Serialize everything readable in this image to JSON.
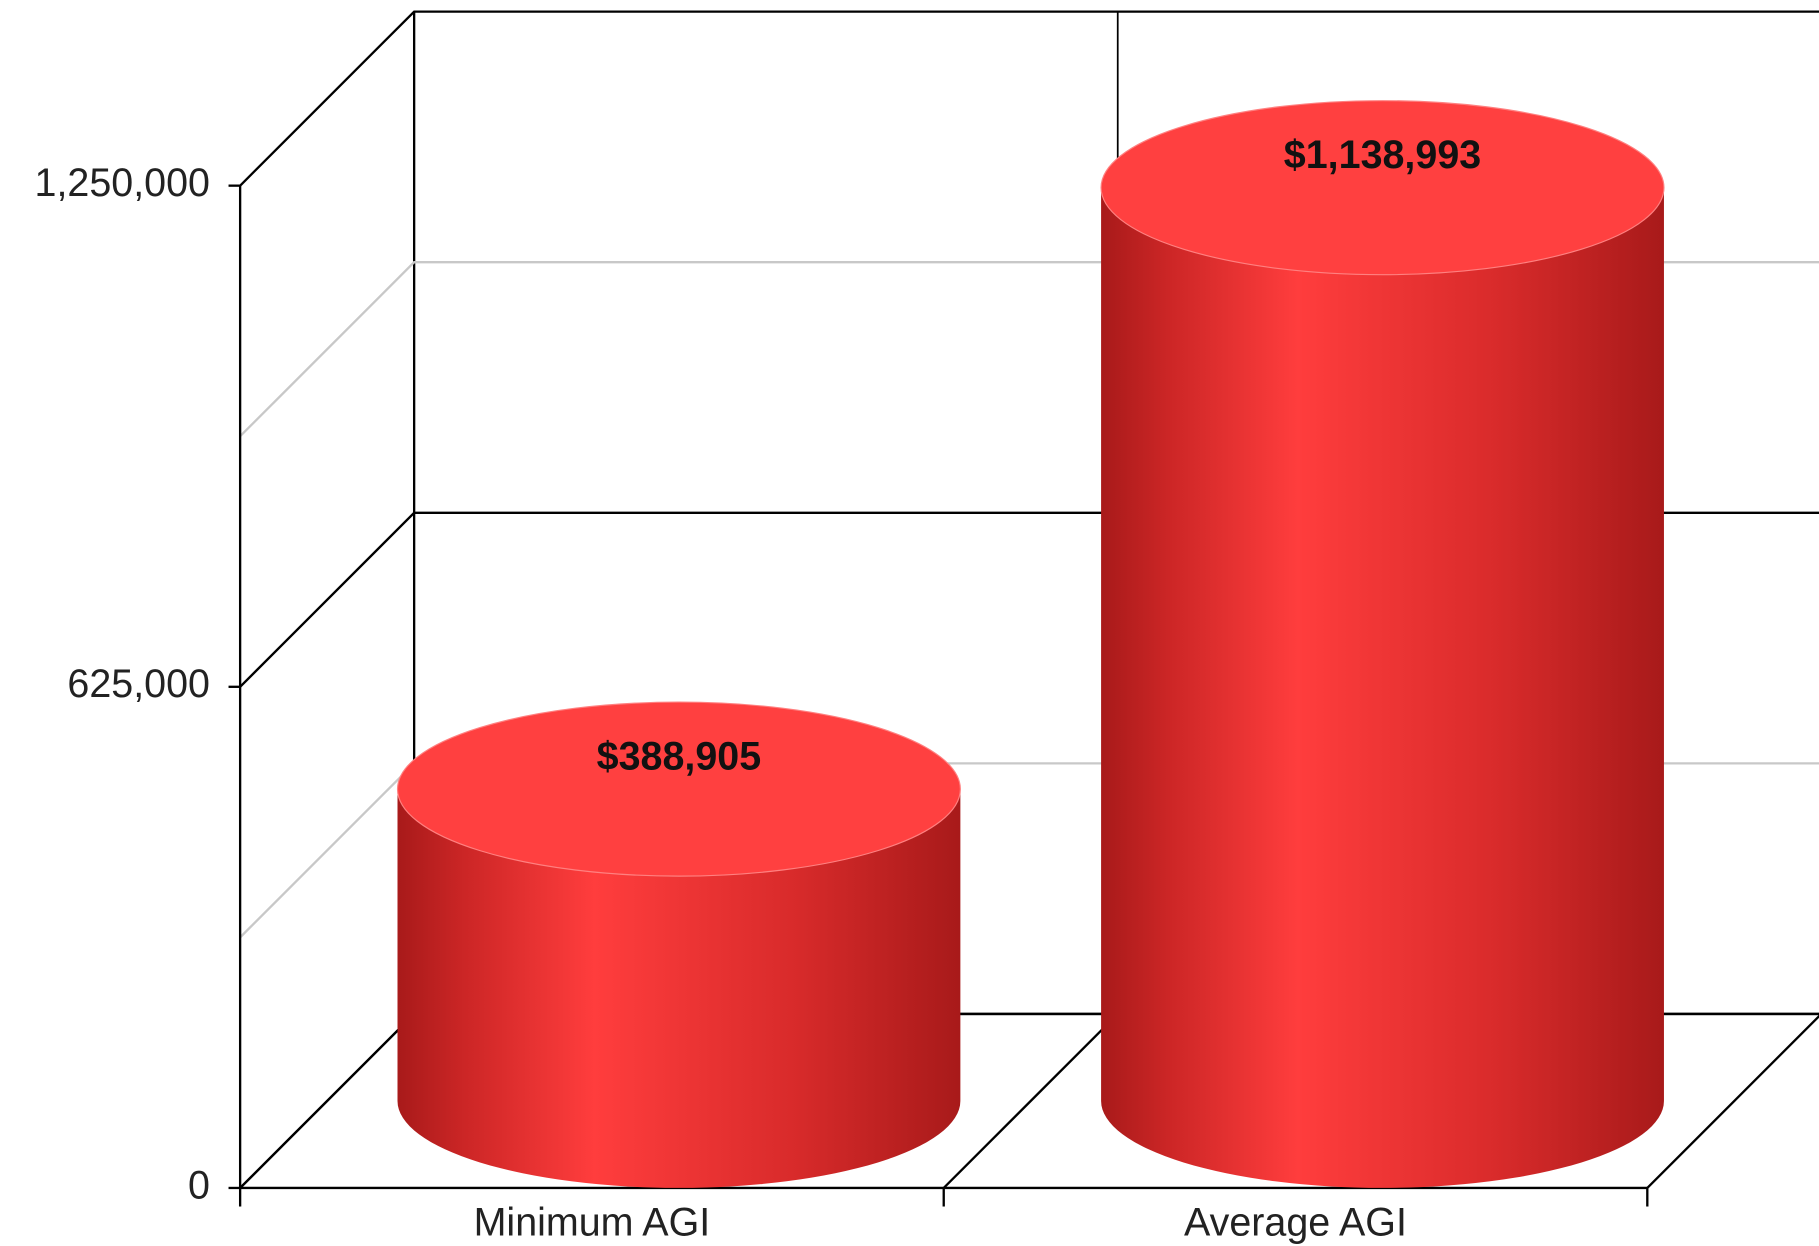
{
  "chart_data": {
    "type": "bar",
    "categories": [
      "Minimum AGI",
      "Average AGI"
    ],
    "values": [
      388905,
      1138993
    ],
    "value_labels": [
      "$388,905",
      "$1,138,993"
    ],
    "color": "#ff3c3c",
    "ylim": [
      0,
      1250000
    ],
    "yticks": [
      0,
      {
        "value": 625000,
        "label": "625,000"
      },
      {
        "value": 1250000,
        "label": "1,250,000"
      }
    ],
    "minor_yticks": [
      312500,
      937500
    ],
    "grid": true
  }
}
